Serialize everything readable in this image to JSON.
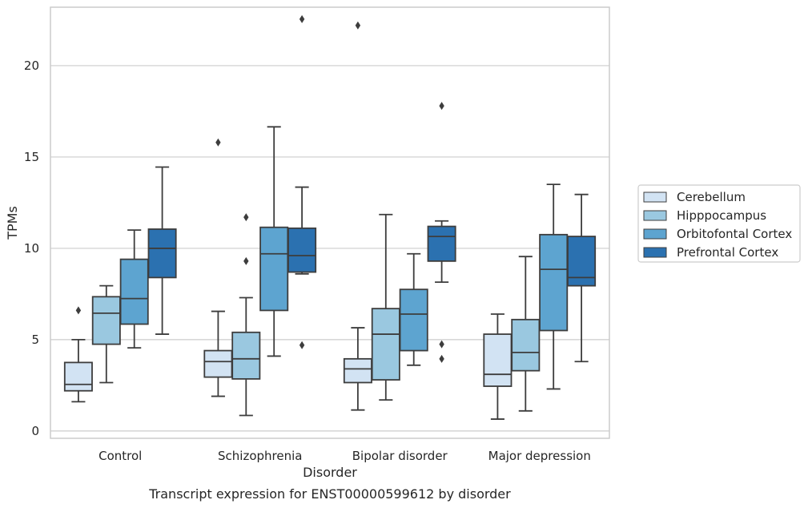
{
  "chart_data": {
    "type": "box",
    "xlabel": "Disorder",
    "ylabel": "TPMs",
    "caption": "Transcript expression for ENST00000599612 by disorder",
    "ylim": [
      -0.4,
      23.2
    ],
    "yticks": [
      0,
      5,
      10,
      15,
      20
    ],
    "grid": "horizontal",
    "legend_position": "right",
    "categories": [
      "Control",
      "Schizophrenia",
      "Bipolar disorder",
      "Major depression"
    ],
    "series": [
      {
        "name": "Cerebellum",
        "color": "#d2e3f3",
        "boxes": [
          {
            "whislo": 1.6,
            "q1": 2.2,
            "med": 2.55,
            "q3": 3.75,
            "whishi": 5.0,
            "fliers": [
              6.6
            ]
          },
          {
            "whislo": 1.9,
            "q1": 2.95,
            "med": 3.8,
            "q3": 4.4,
            "whishi": 6.55,
            "fliers": [
              15.8
            ]
          },
          {
            "whislo": 1.15,
            "q1": 2.65,
            "med": 3.4,
            "q3": 3.95,
            "whishi": 5.65,
            "fliers": [
              22.2
            ]
          },
          {
            "whislo": 0.65,
            "q1": 2.45,
            "med": 3.1,
            "q3": 5.3,
            "whishi": 6.4,
            "fliers": []
          }
        ]
      },
      {
        "name": "Hipppocampus",
        "color": "#9ac8e0",
        "boxes": [
          {
            "whislo": 2.65,
            "q1": 4.75,
            "med": 6.45,
            "q3": 7.35,
            "whishi": 7.95,
            "fliers": []
          },
          {
            "whislo": 0.85,
            "q1": 2.85,
            "med": 3.95,
            "q3": 5.4,
            "whishi": 7.3,
            "fliers": [
              11.7,
              9.3
            ]
          },
          {
            "whislo": 1.7,
            "q1": 2.8,
            "med": 5.3,
            "q3": 6.7,
            "whishi": 11.85,
            "fliers": []
          },
          {
            "whislo": 1.1,
            "q1": 3.3,
            "med": 4.3,
            "q3": 6.1,
            "whishi": 9.55,
            "fliers": []
          }
        ]
      },
      {
        "name": "Orbitofontal Cortex",
        "color": "#5da4d0",
        "boxes": [
          {
            "whislo": 4.55,
            "q1": 5.85,
            "med": 7.25,
            "q3": 9.4,
            "whishi": 11.0,
            "fliers": []
          },
          {
            "whislo": 4.1,
            "q1": 6.6,
            "med": 9.7,
            "q3": 11.15,
            "whishi": 16.65,
            "fliers": []
          },
          {
            "whislo": 3.6,
            "q1": 4.4,
            "med": 6.4,
            "q3": 7.75,
            "whishi": 9.7,
            "fliers": []
          },
          {
            "whislo": 2.3,
            "q1": 5.5,
            "med": 8.85,
            "q3": 10.75,
            "whishi": 13.5,
            "fliers": []
          }
        ]
      },
      {
        "name": "Prefrontal Cortex",
        "color": "#2b71b0",
        "boxes": [
          {
            "whislo": 5.3,
            "q1": 8.4,
            "med": 10.0,
            "q3": 11.05,
            "whishi": 14.45,
            "fliers": []
          },
          {
            "whislo": 8.6,
            "q1": 8.7,
            "med": 9.6,
            "q3": 11.1,
            "whishi": 13.35,
            "fliers": [
              22.55,
              4.7
            ]
          },
          {
            "whislo": 8.15,
            "q1": 9.3,
            "med": 10.65,
            "q3": 11.2,
            "whishi": 11.5,
            "fliers": [
              17.8,
              4.75,
              3.95
            ]
          },
          {
            "whislo": 3.8,
            "q1": 7.95,
            "med": 8.4,
            "q3": 10.65,
            "whishi": 12.95,
            "fliers": []
          }
        ]
      }
    ]
  }
}
